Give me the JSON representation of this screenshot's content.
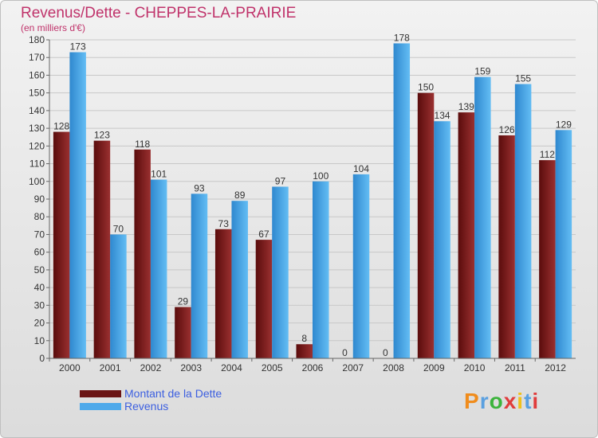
{
  "chart_data": {
    "type": "bar",
    "title": "Revenus/Dette - CHEPPES-LA-PRAIRIE",
    "subtitle": "(en milliers d'€)",
    "categories": [
      "2000",
      "2001",
      "2002",
      "2003",
      "2004",
      "2005",
      "2006",
      "2007",
      "2008",
      "2009",
      "2010",
      "2011",
      "2012"
    ],
    "series": [
      {
        "name": "Montant de la Dette",
        "color": "#7a1c1c",
        "values": [
          128,
          123,
          118,
          29,
          73,
          67,
          8,
          0,
          0,
          150,
          139,
          126,
          112
        ]
      },
      {
        "name": "Revenus",
        "color": "#4ea9ea",
        "values": [
          173,
          70,
          101,
          93,
          89,
          97,
          100,
          104,
          178,
          134,
          159,
          155,
          129
        ]
      }
    ],
    "ylim": [
      0,
      180
    ],
    "yticks": [
      0,
      10,
      20,
      30,
      40,
      50,
      60,
      70,
      80,
      90,
      100,
      110,
      120,
      130,
      140,
      150,
      160,
      170,
      180
    ],
    "grid": true,
    "legend_position": "bottom-left"
  },
  "logo_text": "Proxiti",
  "logo_colors": [
    "#f08c1c",
    "#5aa0e0",
    "#3cb43c",
    "#e03c3c",
    "#f0c01c",
    "#5aa0e0",
    "#e03c3c"
  ]
}
